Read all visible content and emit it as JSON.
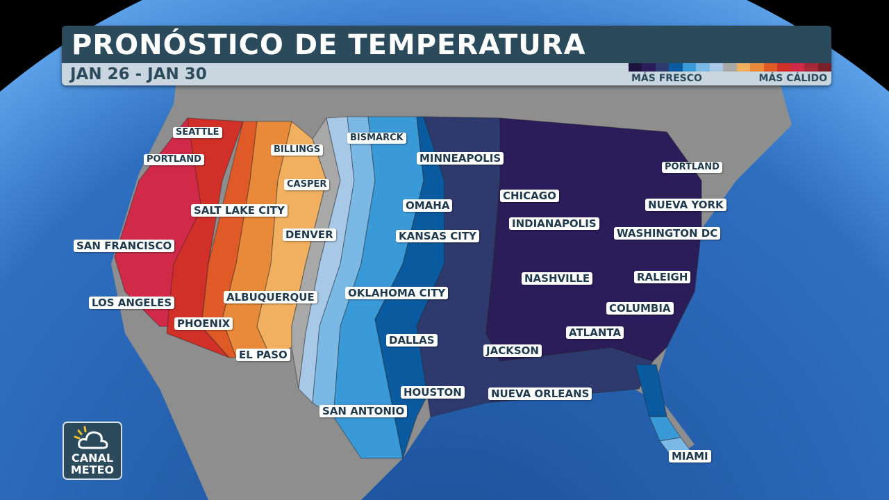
{
  "header": {
    "title": "PRONÓSTICO DE TEMPERATURA",
    "date_range": "JAN 26 - JAN 30"
  },
  "legend": {
    "low_label": "MÁS FRESCO",
    "high_label": "MÁS CÁLIDO",
    "colors": [
      "#1e1440",
      "#2a1d5a",
      "#2e3a6e",
      "#0a5aa0",
      "#3a9ad8",
      "#7ab8e6",
      "#a8c8e8",
      "#a8a8a8",
      "#f0b060",
      "#e88a3a",
      "#e05a28",
      "#d03028",
      "#d02a48",
      "#a82838",
      "#7a2028"
    ]
  },
  "cities": [
    "SEATTLE",
    "PORTLAND",
    "BILLINGS",
    "BISMARCK",
    "MINNEAPOLIS",
    "CASPER",
    "SALT LAKE CITY",
    "OMAHA",
    "DENVER",
    "KANSAS CITY",
    "SAN FRANCISCO",
    "CHICAGO",
    "INDIANAPOLIS",
    "PORTLAND",
    "NUEVA YORK",
    "WASHINGTON DC",
    "NASHVILLE",
    "RALEIGH",
    "LOS ANGELES",
    "ALBUQUERQUE",
    "OKLAHOMA CITY",
    "PHOENIX",
    "COLUMBIA",
    "ATLANTA",
    "DALLAS",
    "JACKSON",
    "EL PASO",
    "HOUSTON",
    "NUEVA ORLEANS",
    "SAN ANTONIO",
    "MIAMI"
  ],
  "logo": {
    "line1": "CANAL",
    "line2": "METEO",
    "icon": "sun-cloud-icon"
  }
}
